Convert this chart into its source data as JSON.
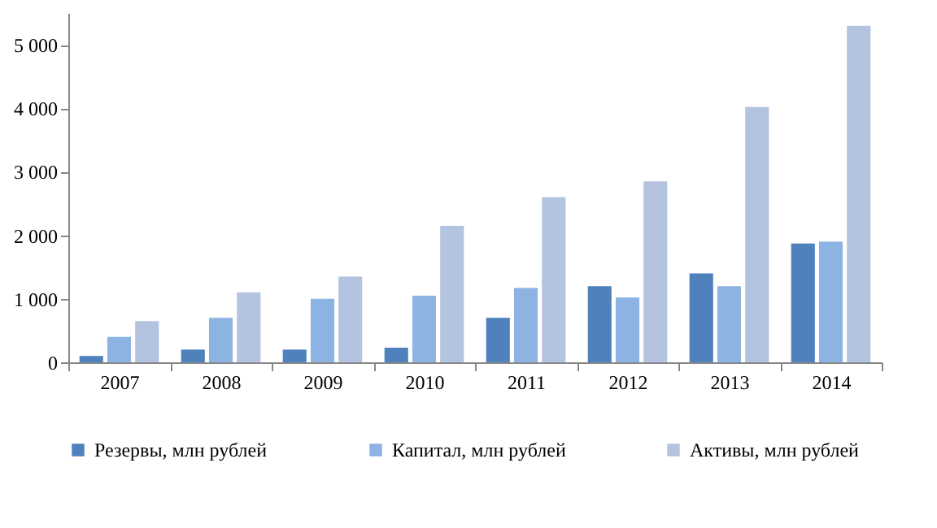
{
  "chart_data": {
    "type": "bar",
    "categories": [
      "2007",
      "2008",
      "2009",
      "2010",
      "2011",
      "2012",
      "2013",
      "2014"
    ],
    "series": [
      {
        "name": "Резервы, млн рублей",
        "color": "#4f81bd",
        "values": [
          100,
          200,
          200,
          230,
          700,
          1200,
          1400,
          1870
        ]
      },
      {
        "name": "Капитал, млн рублей",
        "color": "#8db3e2",
        "values": [
          400,
          700,
          1000,
          1050,
          1170,
          1020,
          1200,
          1900
        ]
      },
      {
        "name": "Активы, млн рублей",
        "color": "#b4c3df",
        "values": [
          650,
          1100,
          1350,
          2150,
          2600,
          2850,
          4020,
          5300
        ]
      }
    ],
    "ylim": [
      0,
      5500
    ],
    "yticks": [
      0,
      {
        "value": 1000,
        "label": "1 000"
      },
      {
        "value": 2000,
        "label": "2 000"
      },
      {
        "value": 3000,
        "label": "3 000"
      },
      {
        "value": 4000,
        "label": "4 000"
      },
      {
        "value": 5000,
        "label": "5 000"
      }
    ],
    "grid": false,
    "legend": "bottom"
  }
}
